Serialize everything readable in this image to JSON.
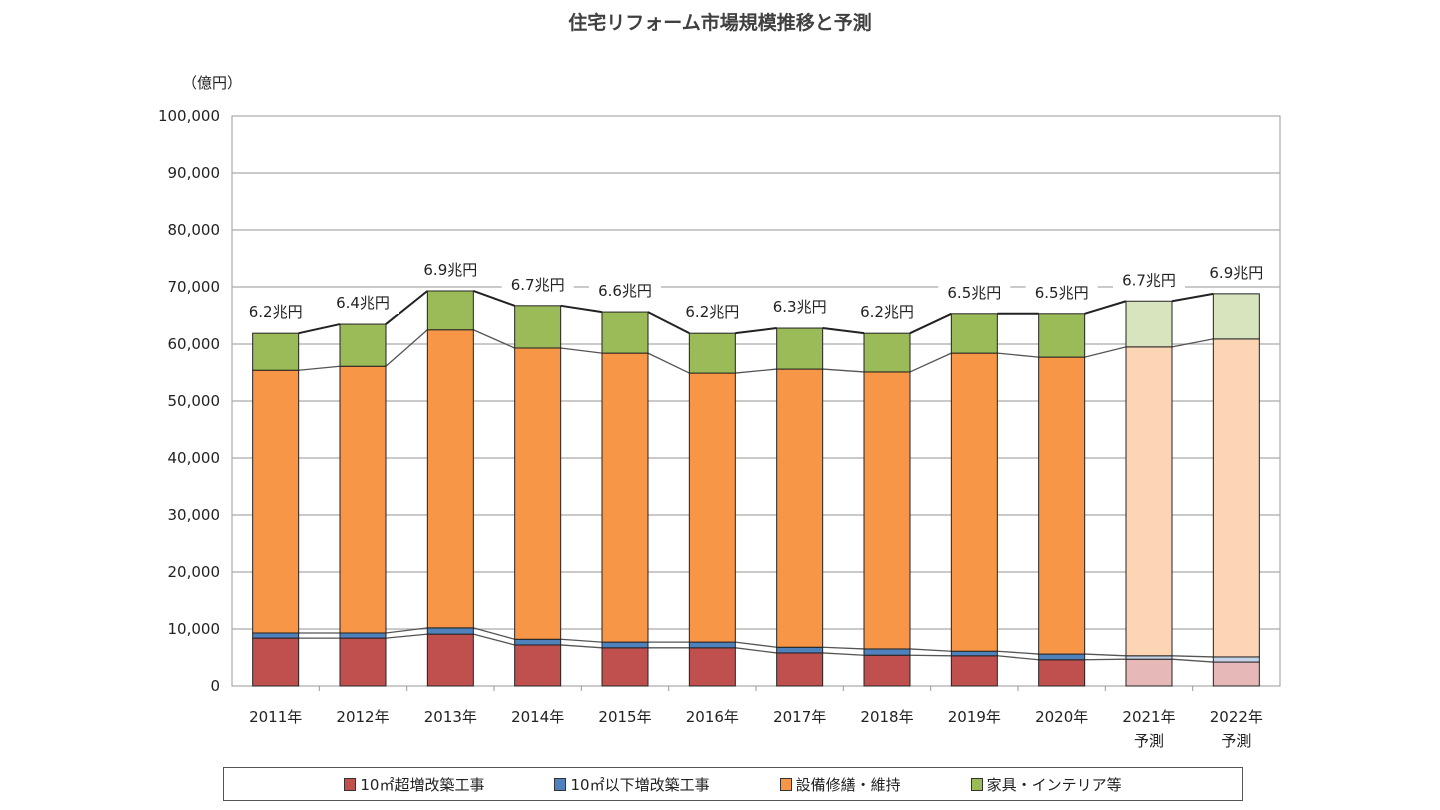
{
  "chart_data": {
    "type": "bar",
    "stacked": true,
    "title": "住宅リフォーム市場規模推移と予測",
    "ylabel": "（億円）",
    "ylim": [
      0,
      100000
    ],
    "yticks": [
      "0",
      "10,000",
      "20,000",
      "30,000",
      "40,000",
      "50,000",
      "60,000",
      "70,000",
      "80,000",
      "90,000",
      "100,000"
    ],
    "grid": true,
    "legend_position": "bottom",
    "categories": [
      "2011年",
      "2012年",
      "2013年",
      "2014年",
      "2015年",
      "2016年",
      "2017年",
      "2018年",
      "2019年",
      "2020年",
      "2021年",
      "2022年"
    ],
    "category_sublabels": [
      "",
      "",
      "",
      "",
      "",
      "",
      "",
      "",
      "",
      "",
      "予測",
      "予測"
    ],
    "forecast_categories": [
      "2021年",
      "2022年"
    ],
    "total_labels": [
      "6.2兆円",
      "6.4兆円",
      "6.9兆円",
      "6.7兆円",
      "6.6兆円",
      "6.2兆円",
      "6.3兆円",
      "6.2兆円",
      "6.5兆円",
      "6.5兆円",
      "6.7兆円",
      "6.9兆円"
    ],
    "series": [
      {
        "name": "10㎡超増改築工事",
        "color": "#c0504d",
        "forecast_color": "#e6b9b8",
        "values": [
          8400,
          8400,
          9100,
          7200,
          6700,
          6700,
          5800,
          5400,
          5300,
          4600,
          4700,
          4200
        ]
      },
      {
        "name": "10㎡以下増改築工事",
        "color": "#4f81bd",
        "forecast_color": "#c5d3e8",
        "values": [
          900,
          900,
          1100,
          1000,
          1000,
          1000,
          1000,
          1100,
          800,
          1000,
          600,
          900
        ]
      },
      {
        "name": "設備修繕・維持",
        "color": "#f79646",
        "forecast_color": "#fcd5b5",
        "values": [
          46100,
          46800,
          52300,
          51100,
          50700,
          47200,
          48800,
          48600,
          52300,
          52100,
          54200,
          55800
        ]
      },
      {
        "name": "家具・インテリア等",
        "color": "#9bbb59",
        "forecast_color": "#d7e4bd",
        "values": [
          6500,
          7400,
          6800,
          7400,
          7200,
          7000,
          7200,
          6800,
          6900,
          7600,
          8000,
          7900
        ]
      }
    ]
  }
}
